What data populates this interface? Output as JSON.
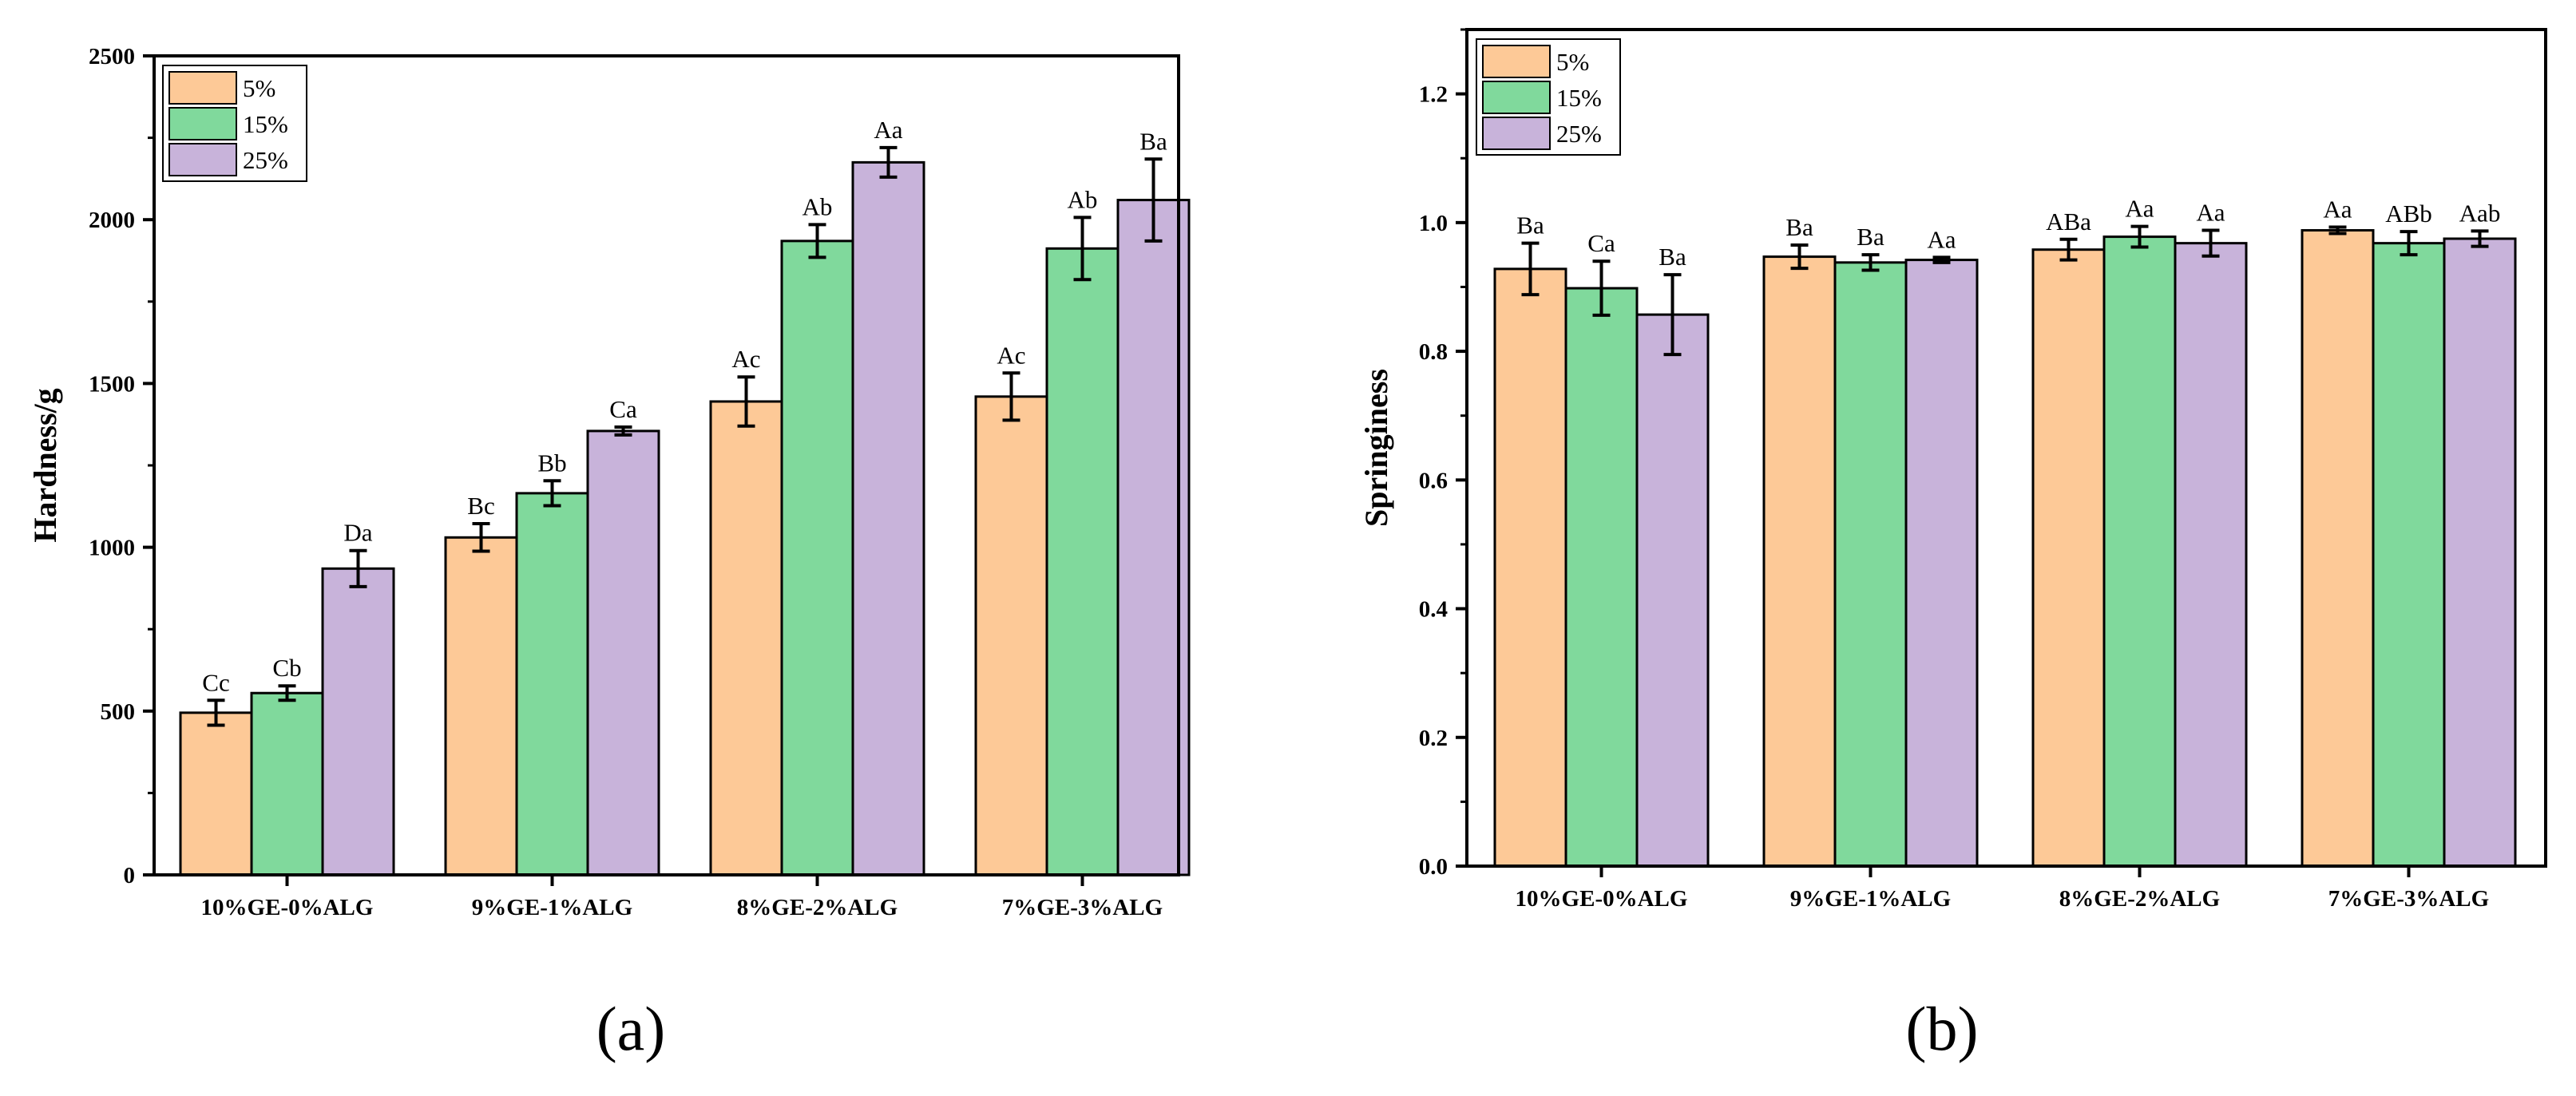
{
  "chart_data": [
    {
      "panel_label": "(a)",
      "type": "bar",
      "title": "",
      "xlabel": "",
      "ylabel": "Hardness/g",
      "ylim": [
        0,
        2500
      ],
      "yticks": [
        0,
        500,
        1000,
        1500,
        2000,
        2500
      ],
      "ytick_labels": [
        "0",
        "500",
        "1000",
        "1500",
        "2000",
        "2500"
      ],
      "categories": [
        "10%GE-0%ALG",
        "9%GE-1%ALG",
        "8%GE-2%ALG",
        "7%GE-3%ALG"
      ],
      "legend_position": "top-left",
      "series": [
        {
          "name": "5%",
          "color": "#FDC997",
          "values": [
            495,
            1030,
            1445,
            1460
          ],
          "errors": [
            38,
            42,
            75,
            72
          ],
          "labels": [
            "Cc",
            "Bc",
            "Ac",
            "Ac"
          ]
        },
        {
          "name": "15%",
          "color": "#80D99C",
          "values": [
            555,
            1165,
            1935,
            1912
          ],
          "errors": [
            22,
            38,
            50,
            95
          ],
          "labels": [
            "Cb",
            "Bb",
            "Ab",
            "Ab"
          ]
        },
        {
          "name": "25%",
          "color": "#C8B3DA",
          "values": [
            935,
            1355,
            2175,
            2060
          ],
          "errors": [
            55,
            12,
            45,
            125
          ],
          "labels": [
            "Da",
            "Ca",
            "Aa",
            "Ba"
          ]
        }
      ]
    },
    {
      "panel_label": "(b)",
      "type": "bar",
      "title": "",
      "xlabel": "",
      "ylabel": "Springiness",
      "ylim": [
        0,
        1.3
      ],
      "yticks": [
        0,
        0.2,
        0.4,
        0.6,
        0.8,
        1.0,
        1.2
      ],
      "ytick_labels": [
        "0.0",
        "0.2",
        "0.4",
        "0.6",
        "0.8",
        "1.0",
        "1.2"
      ],
      "categories": [
        "10%GE-0%ALG",
        "9%GE-1%ALG",
        "8%GE-2%ALG",
        "7%GE-3%ALG"
      ],
      "legend_position": "top-left",
      "series": [
        {
          "name": "5%",
          "color": "#FDC997",
          "values": [
            0.928,
            0.947,
            0.958,
            0.988
          ],
          "errors": [
            0.04,
            0.018,
            0.016,
            0.005
          ],
          "labels": [
            "Ba",
            "Ba",
            "ABa",
            "Aa"
          ]
        },
        {
          "name": "15%",
          "color": "#80D99C",
          "values": [
            0.898,
            0.938,
            0.978,
            0.968
          ],
          "errors": [
            0.042,
            0.012,
            0.016,
            0.018
          ],
          "labels": [
            "Ca",
            "Ba",
            "Aa",
            "ABb"
          ]
        },
        {
          "name": "25%",
          "color": "#C8B3DA",
          "values": [
            0.857,
            0.942,
            0.968,
            0.975
          ],
          "errors": [
            0.062,
            0.004,
            0.02,
            0.012
          ],
          "labels": [
            "Ba",
            "Aa",
            "Aa",
            "Aab"
          ]
        }
      ]
    }
  ]
}
